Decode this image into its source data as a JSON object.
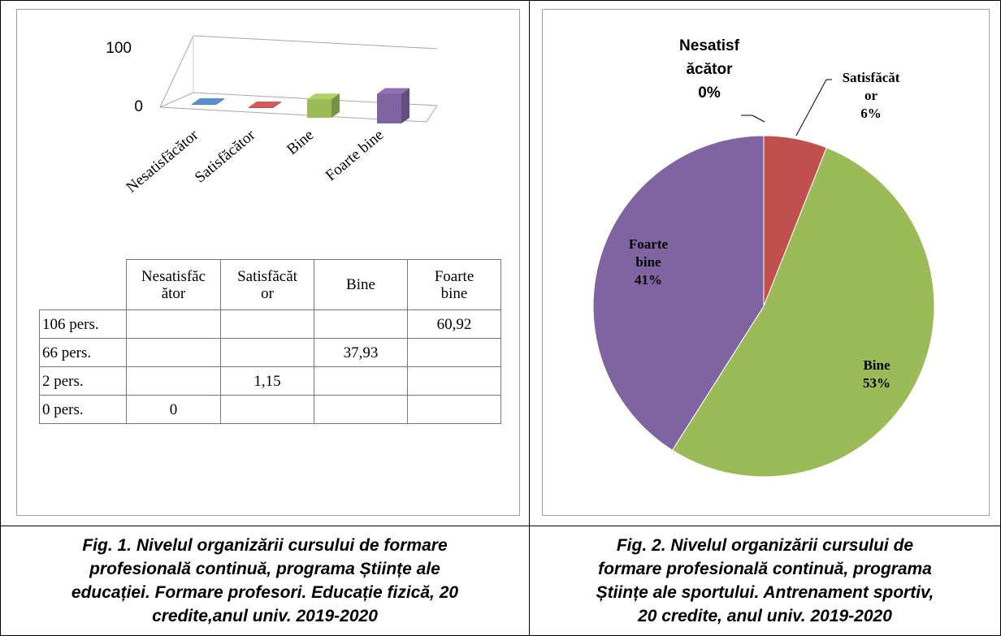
{
  "chart_data": [
    {
      "type": "bar",
      "categories": [
        "Nesatisfăcător",
        "Satisfăcător",
        "Bine",
        "Foarte bine"
      ],
      "values": [
        0,
        1.15,
        37.93,
        60.92
      ],
      "yaxis_ticks": [
        "100",
        "0"
      ],
      "ylim": [
        0,
        100
      ],
      "colors": [
        "#4f81bd",
        "#c0504d",
        "#9bbb59",
        "#8064a2"
      ],
      "table": {
        "headers": [
          "Nesatisfăc\nător",
          "Satisfăcăt\nor",
          "Bine",
          "Foarte\nbine"
        ],
        "rows": [
          {
            "label": "106 pers.",
            "cells": [
              "",
              "",
              "",
              "60,92"
            ]
          },
          {
            "label": "66 pers.",
            "cells": [
              "",
              "",
              "37,93",
              ""
            ]
          },
          {
            "label": "2 pers.",
            "cells": [
              "",
              "1,15",
              "",
              ""
            ]
          },
          {
            "label": "0 pers.",
            "cells": [
              "0",
              "",
              "",
              ""
            ]
          }
        ]
      }
    },
    {
      "type": "pie",
      "slices": [
        {
          "name": "Nesatisfăcător",
          "label_lines": [
            "Nesatisf",
            "ăcător",
            "0%"
          ],
          "value": 0,
          "color": "#4f81bd"
        },
        {
          "name": "Satisfăcător",
          "label_lines": [
            "Satisfăcăt",
            "or",
            "6%"
          ],
          "value": 6,
          "color": "#c0504d"
        },
        {
          "name": "Bine",
          "label_lines": [
            "Bine",
            "53%"
          ],
          "value": 53,
          "color": "#9bbb59"
        },
        {
          "name": "Foarte bine",
          "label_lines": [
            "Foarte",
            "bine",
            "41%"
          ],
          "value": 41,
          "color": "#8064a2"
        }
      ]
    }
  ],
  "captions": {
    "fig1": [
      "Fig. 1. Nivelul organizării cursului de formare",
      "profesională continuă, programa Științe ale",
      "educației. Formare profesori. Educație fizică, 20",
      "credite,anul univ. 2019-2020"
    ],
    "fig2": [
      "Fig. 2. Nivelul organizării cursului de",
      "formare profesională continuă, programa",
      "Științe ale sportului. Antrenament sportiv,",
      "20 credite, anul univ. 2019-2020"
    ]
  }
}
